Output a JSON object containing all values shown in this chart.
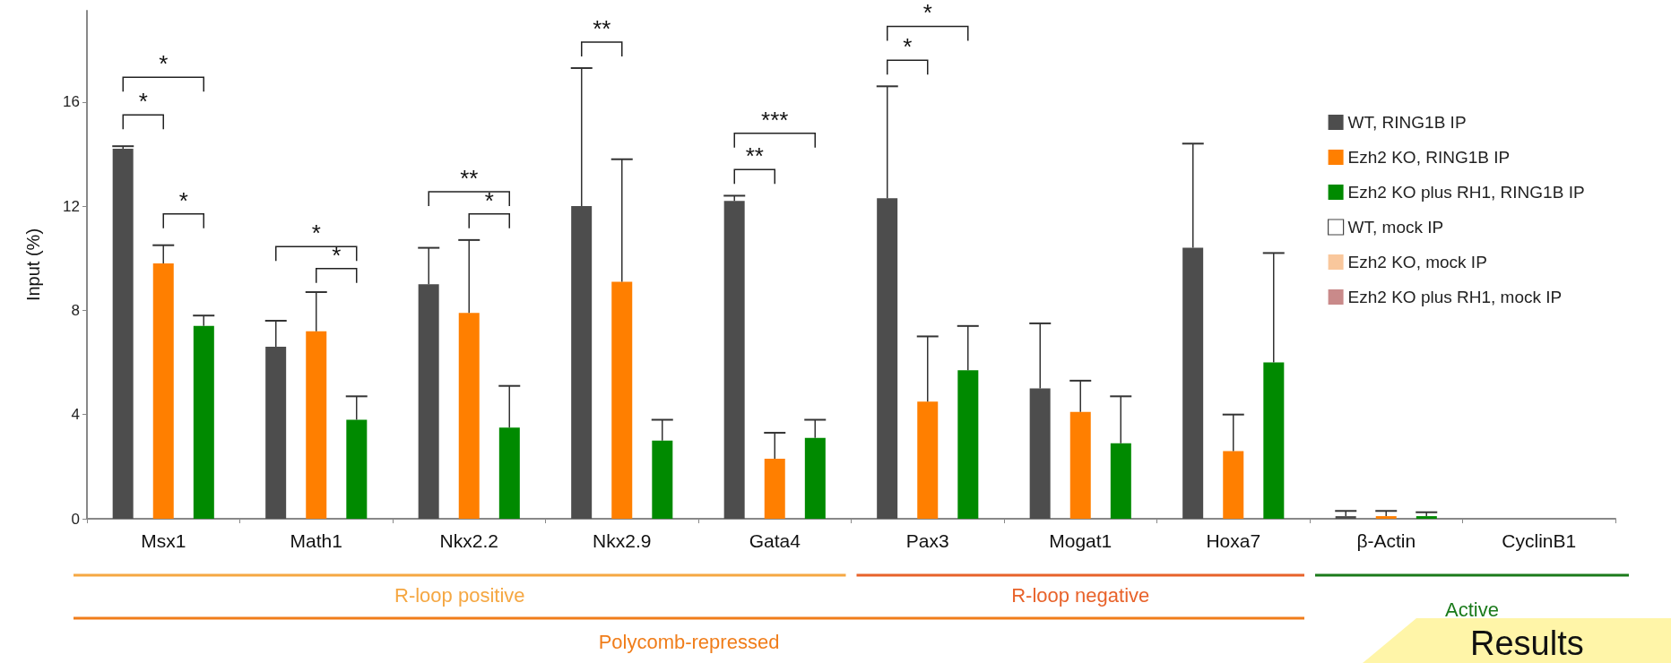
{
  "chart_data": {
    "type": "bar",
    "ylabel": "Input (%)",
    "categories": [
      "Msx1",
      "Math1",
      "Nkx2.2",
      "Nkx2.9",
      "Gata4",
      "Pax3",
      "Mogat1",
      "Hoxa7",
      "β-Actin",
      "CyclinB1"
    ],
    "series": [
      {
        "name": "WT, RING1B IP",
        "color": "#4d4d4d",
        "values": [
          14.2,
          6.6,
          9.0,
          12.0,
          12.2,
          12.3,
          5.0,
          10.4,
          0.1,
          null
        ],
        "errors": [
          [
            14.2,
            14.3
          ],
          [
            6.6,
            7.6
          ],
          [
            9.0,
            10.4
          ],
          [
            12.0,
            17.3
          ],
          [
            12.2,
            12.4
          ],
          [
            12.3,
            16.6
          ],
          [
            5.0,
            7.5
          ],
          [
            10.4,
            14.4
          ],
          [
            0.1,
            0.3
          ],
          null
        ]
      },
      {
        "name": "Ezh2 KO, RING1B IP",
        "color": "#ff7f00",
        "values": [
          9.8,
          7.2,
          7.9,
          9.1,
          2.3,
          4.5,
          4.1,
          2.6,
          0.1,
          null
        ],
        "errors": [
          [
            9.8,
            10.5
          ],
          [
            7.2,
            8.7
          ],
          [
            7.9,
            10.7
          ],
          [
            9.1,
            13.8
          ],
          [
            2.3,
            3.3
          ],
          [
            4.5,
            7.0
          ],
          [
            4.1,
            5.3
          ],
          [
            2.6,
            4.0
          ],
          [
            0.1,
            0.3
          ],
          null
        ]
      },
      {
        "name": "Ezh2 KO plus RH1, RING1B IP",
        "color": "#008a00",
        "values": [
          7.4,
          3.8,
          3.5,
          3.0,
          3.1,
          5.7,
          2.9,
          6.0,
          0.1,
          null
        ],
        "errors": [
          [
            7.4,
            7.8
          ],
          [
            3.8,
            4.7
          ],
          [
            3.5,
            5.1
          ],
          [
            3.0,
            3.8
          ],
          [
            3.1,
            3.8
          ],
          [
            5.7,
            7.4
          ],
          [
            2.9,
            4.7
          ],
          [
            6.0,
            10.2
          ],
          [
            0.1,
            0.25
          ],
          null
        ]
      },
      {
        "name": "WT, mock IP",
        "color": "#ffffff",
        "values": [
          null,
          null,
          null,
          null,
          null,
          null,
          null,
          null,
          null,
          null
        ]
      },
      {
        "name": "Ezh2 KO, mock IP",
        "color": "#f9c79c",
        "values": [
          null,
          null,
          null,
          null,
          null,
          null,
          null,
          null,
          null,
          null
        ]
      },
      {
        "name": "Ezh2 KO plus RH1, mock IP",
        "color": "#c98a8a",
        "values": [
          null,
          null,
          null,
          null,
          null,
          null,
          null,
          null,
          null,
          null
        ]
      }
    ],
    "ylim": [
      0,
      19.5
    ],
    "yticks": [
      0,
      4,
      8,
      12,
      16
    ],
    "grid": false,
    "legend": "top right",
    "annotations": [
      "*",
      "*",
      "*",
      "*",
      "*",
      "**",
      "*",
      "**",
      "**",
      "***",
      "*",
      "*",
      "R-loop positive",
      "R-loop negative",
      "Active",
      "Polycomb-repressed",
      "Results"
    ]
  }
}
